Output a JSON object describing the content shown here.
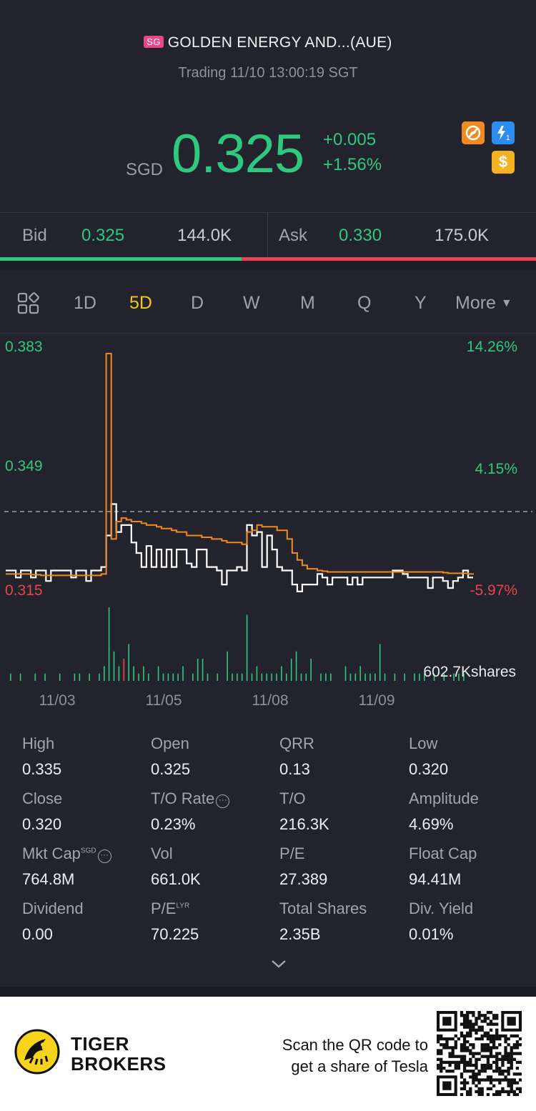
{
  "header": {
    "market_badge": "SG",
    "title": "GOLDEN ENERGY AND...(AUE)",
    "status": "Trading 11/10 13:00:19 SGT"
  },
  "quote": {
    "currency": "SGD",
    "price": "0.325",
    "change": "+0.005",
    "change_pct": "+1.56%",
    "icons": [
      "no-short-sell-icon",
      "flash-level1-icon",
      "dollar-icon"
    ],
    "up_color": "#2fc87e",
    "down_color": "#e8434f"
  },
  "bidask": {
    "bid_label": "Bid",
    "bid_price": "0.325",
    "bid_volume": "144.0K",
    "ask_label": "Ask",
    "ask_price": "0.330",
    "ask_volume": "175.0K"
  },
  "periods": {
    "grid_icon": "layout-grid-icon",
    "tabs": [
      "1D",
      "5D",
      "D",
      "W",
      "M",
      "Q",
      "Y"
    ],
    "active": "5D",
    "more_label": "More"
  },
  "chart_data": {
    "type": "line",
    "y_left_labels": [
      "0.383",
      "0.349",
      "0.315"
    ],
    "y_right_labels": [
      "14.26%",
      "4.15%",
      "-5.97%"
    ],
    "x_labels": [
      "11/03",
      "11/05",
      "11/08",
      "11/09"
    ],
    "ylim": [
      0.315,
      0.383
    ],
    "reference_close": 0.32,
    "volume_label": "602.7Kshares",
    "series": [
      {
        "color": "#ffffff",
        "values": [
          0.32,
          0.32,
          0.318,
          0.32,
          0.32,
          0.318,
          0.32,
          0.32,
          0.317,
          0.32,
          0.32,
          0.32,
          0.32,
          0.318,
          0.32,
          0.32,
          0.317,
          0.32,
          0.32,
          0.321,
          0.33,
          0.339,
          0.331,
          0.333,
          0.333,
          0.328,
          0.325,
          0.321,
          0.327,
          0.321,
          0.326,
          0.321,
          0.326,
          0.321,
          0.326,
          0.326,
          0.322,
          0.321,
          0.326,
          0.326,
          0.321,
          0.321,
          0.32,
          0.316,
          0.32,
          0.32,
          0.321,
          0.32,
          0.333,
          0.33,
          0.331,
          0.321,
          0.33,
          0.326,
          0.321,
          0.32,
          0.32,
          0.316,
          0.314,
          0.316,
          0.316,
          0.316,
          0.319,
          0.318,
          0.316,
          0.318,
          0.318,
          0.318,
          0.316,
          0.318,
          0.316,
          0.318,
          0.318,
          0.318,
          0.318,
          0.318,
          0.318,
          0.32,
          0.32,
          0.319,
          0.318,
          0.318,
          0.318,
          0.318,
          0.315,
          0.318,
          0.318,
          0.317,
          0.315,
          0.317,
          0.318,
          0.32,
          0.318,
          0.318
        ]
      },
      {
        "color": "#f08a1c",
        "values": [
          0.319,
          0.319,
          0.319,
          0.319,
          0.319,
          0.3188,
          0.3188,
          0.3186,
          0.3186,
          0.3186,
          0.3186,
          0.3186,
          0.3186,
          0.3186,
          0.3186,
          0.3186,
          0.3186,
          0.3186,
          0.3186,
          0.319,
          0.382,
          0.329,
          0.334,
          0.335,
          0.3345,
          0.334,
          0.334,
          0.3335,
          0.333,
          0.333,
          0.3325,
          0.332,
          0.332,
          0.3315,
          0.331,
          0.331,
          0.33,
          0.33,
          0.33,
          0.3295,
          0.3295,
          0.329,
          0.329,
          0.3285,
          0.328,
          0.328,
          0.328,
          0.3275,
          0.331,
          0.3315,
          0.333,
          0.3325,
          0.3325,
          0.3325,
          0.3315,
          0.3315,
          0.329,
          0.325,
          0.323,
          0.3215,
          0.3205,
          0.3205,
          0.32,
          0.3198,
          0.3196,
          0.3196,
          0.3196,
          0.3196,
          0.3196,
          0.3196,
          0.3196,
          0.3196,
          0.3196,
          0.3196,
          0.3196,
          0.3196,
          0.3196,
          0.3196,
          0.3196,
          0.3196,
          0.3196,
          0.3196,
          0.3196,
          0.3196,
          0.3196,
          0.3196,
          0.3196,
          0.3194,
          0.3192,
          0.3192,
          0.3192,
          0.3192,
          0.319,
          0.3188
        ]
      }
    ],
    "volume": [
      1,
      0,
      1,
      0,
      0,
      1,
      0,
      1,
      0,
      0,
      1,
      0,
      0,
      1,
      1,
      0,
      1,
      0,
      1,
      2,
      10,
      4,
      2,
      3,
      5,
      2,
      1,
      2,
      1,
      0,
      2,
      1,
      1,
      1,
      1,
      2,
      0,
      1,
      3,
      3,
      1,
      0,
      1,
      0,
      4,
      1,
      1,
      1,
      9,
      1,
      2,
      1,
      1,
      1,
      1,
      2,
      1,
      3,
      4,
      1,
      1,
      3,
      0,
      1,
      1,
      1,
      0,
      0,
      2,
      1,
      1,
      2,
      1,
      1,
      1,
      5,
      1,
      0,
      1,
      0,
      1,
      0,
      1,
      1,
      1,
      0,
      1,
      0,
      1,
      0,
      1,
      1,
      1,
      0
    ]
  },
  "stats": [
    {
      "label": "High",
      "value": "0.335"
    },
    {
      "label": "Open",
      "value": "0.325"
    },
    {
      "label": "QRR",
      "value": "0.13"
    },
    {
      "label": "Low",
      "value": "0.320"
    },
    {
      "label": "Close",
      "value": "0.320"
    },
    {
      "label": "T/O Rate",
      "value": "0.23%"
    },
    {
      "label": "T/O",
      "value": "216.3K"
    },
    {
      "label": "Amplitude",
      "value": "4.69%"
    },
    {
      "label": "Mkt Cap",
      "value": "764.8M",
      "sup": "SGD"
    },
    {
      "label": "Vol",
      "value": "661.0K"
    },
    {
      "label": "P/E",
      "value": "27.389"
    },
    {
      "label": "Float Cap",
      "value": "94.41M"
    },
    {
      "label": "Dividend",
      "value": "0.00"
    },
    {
      "label": "P/E",
      "value": "70.225",
      "sup": "LYR"
    },
    {
      "label": "Total Shares",
      "value": "2.35B"
    },
    {
      "label": "Div. Yield",
      "value": "0.01%"
    }
  ],
  "footer": {
    "brand_line1": "TIGER",
    "brand_line2": "BROKERS",
    "promo_line1": "Scan the QR code to",
    "promo_line2": "get a share of Tesla"
  }
}
